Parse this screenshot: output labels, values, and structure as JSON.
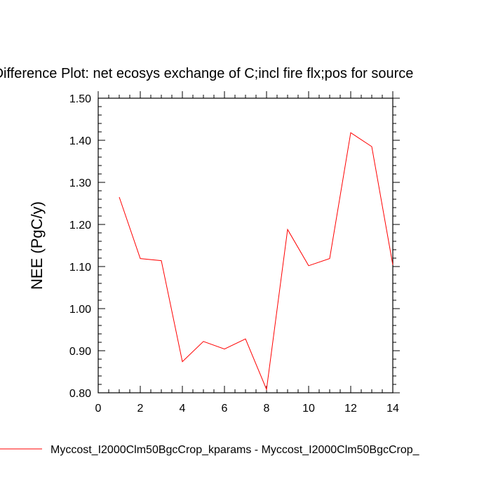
{
  "chart_data": {
    "type": "line",
    "title": "Difference Plot: net ecosys exchange of C;incl fire flx;pos for source",
    "xlabel": "",
    "ylabel": "NEE  (PgC/y)",
    "xlim": [
      0,
      14
    ],
    "ylim": [
      0.8,
      1.5
    ],
    "x_ticks": [
      "0",
      "2",
      "4",
      "6",
      "8",
      "10",
      "12",
      "14"
    ],
    "y_ticks": [
      "0.80",
      "0.90",
      "1.00",
      "1.10",
      "1.20",
      "1.30",
      "1.40",
      "1.50"
    ],
    "grid": false,
    "legend_position": "bottom",
    "series": [
      {
        "name": "Myccost_I2000Clm50BgcCrop_kparams - Myccost_I2000Clm50BgcCrop_",
        "color": "#ff0000",
        "x": [
          1,
          2,
          3,
          4,
          5,
          6,
          7,
          8,
          9,
          10,
          11,
          12,
          13,
          14
        ],
        "y": [
          1.265,
          1.119,
          1.114,
          0.874,
          0.922,
          0.904,
          0.928,
          0.808,
          1.188,
          1.102,
          1.119,
          1.418,
          1.385,
          1.104
        ]
      }
    ]
  }
}
